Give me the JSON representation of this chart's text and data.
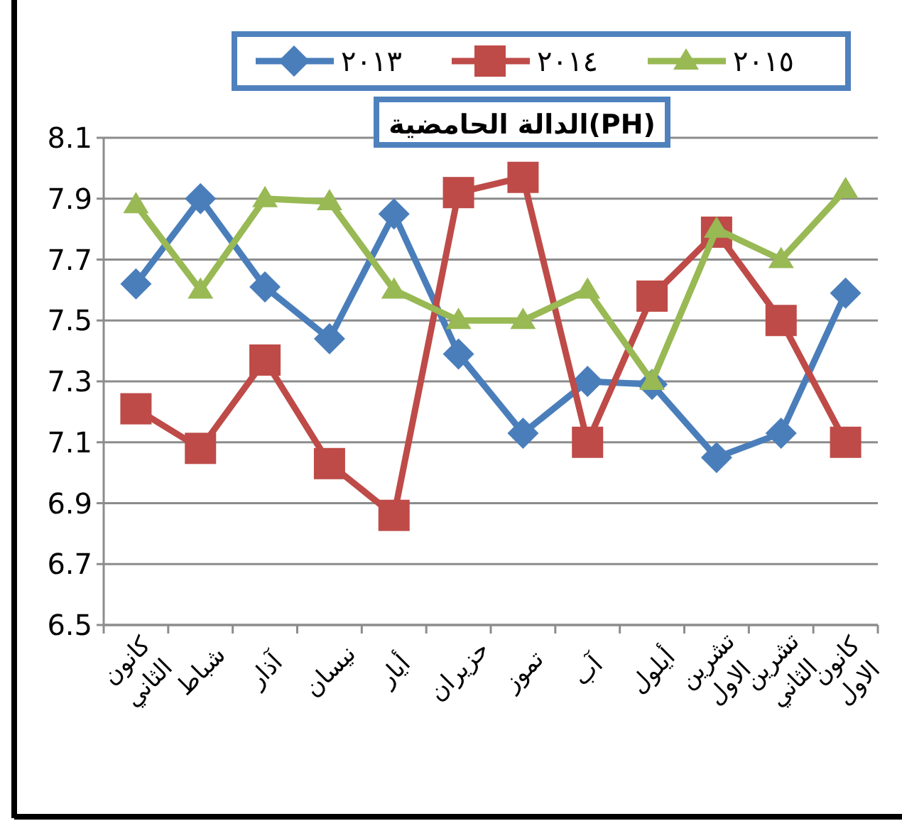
{
  "chart_data": {
    "type": "line",
    "title": "الدالة الحامضية(PH)",
    "categories": [
      "كانون الثاني",
      "شباط",
      "آذار",
      "نيسان",
      "أيار",
      "حزيران",
      "تموز",
      "آب",
      "أيلول",
      "تشرين الاول",
      "تشرين الثاني",
      "كانون الاول"
    ],
    "series": [
      {
        "name": "٢٠١٣",
        "color": "#4a7ebb",
        "marker": "diamond",
        "values": [
          7.62,
          7.9,
          7.61,
          7.44,
          7.85,
          7.39,
          7.13,
          7.3,
          7.29,
          7.05,
          7.13,
          7.59
        ]
      },
      {
        "name": "٢٠١٤",
        "color": "#be4b48",
        "marker": "square",
        "values": [
          7.21,
          7.08,
          7.37,
          7.03,
          6.86,
          7.92,
          7.97,
          7.1,
          7.58,
          7.79,
          7.5,
          7.1
        ]
      },
      {
        "name": "٢٠١٥",
        "color": "#98b954",
        "marker": "triangle",
        "values": [
          7.88,
          7.6,
          7.9,
          7.89,
          7.6,
          7.5,
          7.5,
          7.6,
          7.3,
          7.8,
          7.7,
          7.93
        ]
      }
    ],
    "ylim": [
      6.5,
      8.1
    ],
    "yticks": [
      6.5,
      6.7,
      6.9,
      7.1,
      7.3,
      7.5,
      7.7,
      7.9,
      8.1
    ],
    "grid": "y",
    "legend": "top"
  }
}
